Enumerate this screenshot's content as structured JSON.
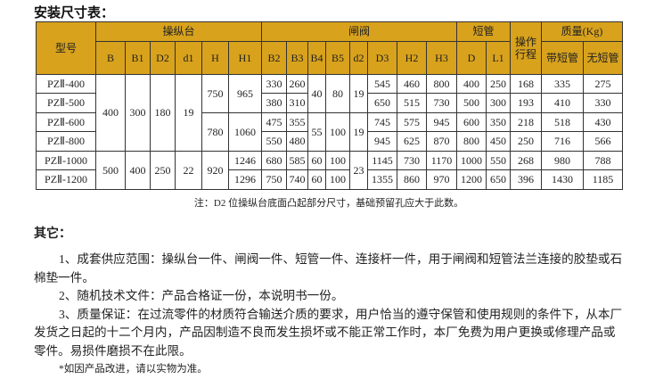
{
  "title": "安装尺寸表：",
  "table": {
    "model_header": "型号",
    "groups": [
      "操纵台",
      "闸阀",
      "短管",
      "操作行程",
      "质量(Kg)"
    ],
    "console_cols": [
      "B",
      "B1",
      "D2",
      "d1",
      "H",
      "H1"
    ],
    "valve_cols": [
      "B2",
      "B3",
      "B4",
      "B5",
      "d2",
      "D3",
      "H2",
      "H3"
    ],
    "pipe_cols": [
      "D",
      "L1"
    ],
    "mass_cols": [
      "带短管",
      "无短管"
    ],
    "stroke_top": "操作",
    "stroke_bottom": "行程",
    "rows": [
      [
        "PZⅡ-400",
        "400",
        "300",
        "180",
        "19",
        "750",
        "965",
        "330",
        "260",
        "40",
        "80",
        "19",
        "545",
        "460",
        "800",
        "400",
        "250",
        "168",
        "335",
        "275"
      ],
      [
        "PZⅡ-500",
        "400",
        "300",
        "180",
        "19",
        "750",
        "965",
        "380",
        "310",
        "40",
        "80",
        "19",
        "650",
        "515",
        "730",
        "500",
        "300",
        "193",
        "410",
        "330"
      ],
      [
        "PZⅡ-600",
        "400",
        "300",
        "180",
        "19",
        "780",
        "1060",
        "475",
        "355",
        "55",
        "100",
        "19",
        "745",
        "575",
        "945",
        "600",
        "350",
        "218",
        "518",
        "430"
      ],
      [
        "PZⅡ-800",
        "400",
        "300",
        "180",
        "19",
        "780",
        "1060",
        "550",
        "480",
        "55",
        "100",
        "19",
        "945",
        "625",
        "870",
        "800",
        "450",
        "250",
        "716",
        "566"
      ],
      [
        "PZⅡ-1000",
        "500",
        "400",
        "250",
        "22",
        "920",
        "1246",
        "680",
        "585",
        "60",
        "100",
        "23",
        "1145",
        "730",
        "1170",
        "1000",
        "550",
        "268",
        "980",
        "788"
      ],
      [
        "PZⅡ-1200",
        "500",
        "400",
        "250",
        "22",
        "920",
        "1296",
        "750",
        "740",
        "60",
        "100",
        "23",
        "1355",
        "860",
        "970",
        "1200",
        "650",
        "396",
        "1430",
        "1185"
      ]
    ]
  },
  "note": "注：D2 位操纵台底面凸起部分尺寸，基础预留孔应大于此数。",
  "other_heading": "其它：",
  "paragraphs": [
    "1、成套供应范围：操纵台一件、闸阀一件、短管一件、连接杆一件，用于闸阀和短管法兰连接的胶垫或石棉垫一件。",
    "2、随机技术文件：产品合格证一份，本说明书一份。",
    "3、质量保证：在过流零件的材质符合输送介质的要求，用户恰当的遵守保管和使用规则的条件下，从本厂发货之日起的十二个月内，产品因制造不良而发生损坏或不能正常工作时，本厂免费为用户更换或修理产品或零件。易损件磨损不在此限。"
  ],
  "footnote": "*如因产品改进，请以实物为准。",
  "colors": {
    "header_bg": "#d8a21c"
  }
}
